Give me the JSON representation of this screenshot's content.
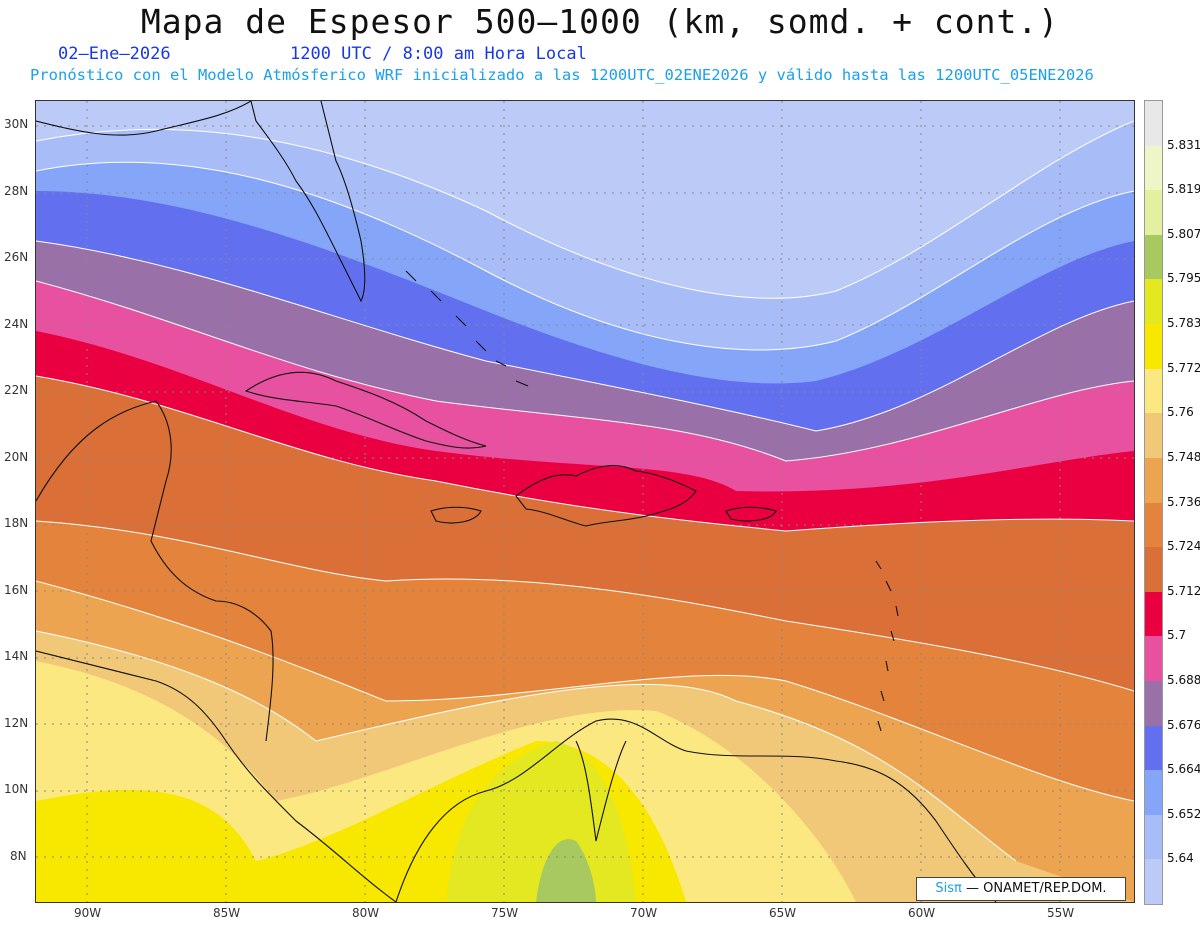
{
  "title": "Mapa de Espesor 500—1000 (km, somd. + cont.)",
  "date": "02—Ene—2026",
  "time": "1200 UTC / 8:00 am Hora Local",
  "subtitle": "Pronóstico con el Modelo Atmósferico WRF inicializado a las 1200UTC_02ENE2026 y válido hasta las  1200UTC_05ENE2026",
  "lat_labels": [
    "30N",
    "28N",
    "26N",
    "24N",
    "22N",
    "20N",
    "18N",
    "16N",
    "14N",
    "12N",
    "10N",
    "8N"
  ],
  "lon_labels": [
    "90W",
    "85W",
    "80W",
    "75W",
    "70W",
    "65W",
    "60W",
    "55W"
  ],
  "colorbar": {
    "labels": [
      "5.831",
      "5.819",
      "5.807",
      "5.795",
      "5.783",
      "5.772",
      "5.76",
      "5.748",
      "5.736",
      "5.724",
      "5.712",
      "5.7",
      "5.688",
      "5.676",
      "5.664",
      "5.652",
      "5.64"
    ],
    "colors": [
      "#e8e8e8",
      "#f0f5c8",
      "#e2f0a0",
      "#a8c860",
      "#e4e820",
      "#f8e800",
      "#fce880",
      "#f0c878",
      "#eca450",
      "#e4843c",
      "#da7038",
      "#ea0040",
      "#e850a0",
      "#9a70a8",
      "#6270f0",
      "#85a5f8",
      "#a8bcf8",
      "#bccaf8"
    ]
  },
  "credit": {
    "sis": "Sisπ",
    "rest": "— ONAMET/REP.DOM."
  }
}
